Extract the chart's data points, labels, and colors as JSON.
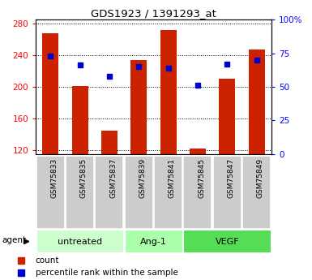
{
  "title": "GDS1923 / 1391293_at",
  "samples": [
    "GSM75833",
    "GSM75835",
    "GSM75837",
    "GSM75839",
    "GSM75841",
    "GSM75845",
    "GSM75847",
    "GSM75849"
  ],
  "counts": [
    268,
    201,
    145,
    234,
    272,
    122,
    210,
    247
  ],
  "percentile_ranks": [
    73,
    66,
    58,
    65,
    64,
    51,
    67,
    70
  ],
  "groups": [
    {
      "label": "untreated",
      "start": 0,
      "end": 3,
      "color": "#ccffcc"
    },
    {
      "label": "Ang-1",
      "start": 3,
      "end": 5,
      "color": "#aaffaa"
    },
    {
      "label": "VEGF",
      "start": 5,
      "end": 8,
      "color": "#55dd55"
    }
  ],
  "ylim_left": [
    115,
    285
  ],
  "ylim_right": [
    0,
    100
  ],
  "yticks_left": [
    120,
    160,
    200,
    240,
    280
  ],
  "yticks_right": [
    0,
    25,
    50,
    75,
    100
  ],
  "bar_color": "#cc2200",
  "dot_color": "#0000cc",
  "bar_bottom": 115,
  "background_color": "#ffffff",
  "legend_count_color": "#cc2200",
  "legend_dot_color": "#0000cc",
  "tick_bg_color": "#cccccc"
}
